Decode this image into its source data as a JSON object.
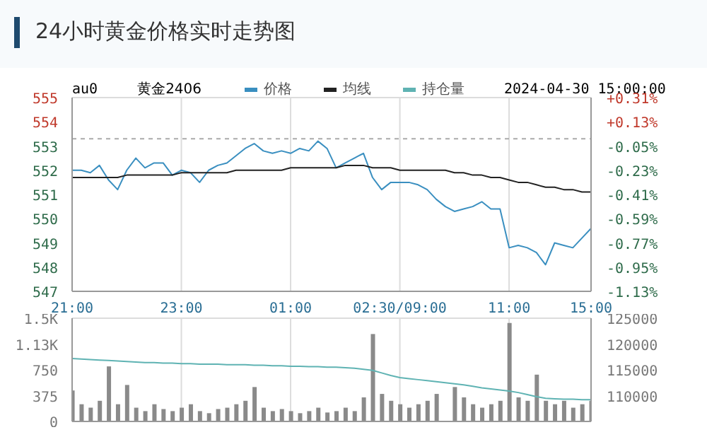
{
  "chart_data": [
    {
      "type": "line",
      "title": "24小时黄金价格实时走势图",
      "annotations": [
        "au0",
        "黄金2406",
        "2024-04-30 15:00:00"
      ],
      "categories": [
        "21:00",
        null,
        null,
        null,
        null,
        null,
        null,
        null,
        null,
        null,
        null,
        null,
        "23:00",
        null,
        null,
        null,
        null,
        null,
        null,
        null,
        null,
        null,
        null,
        null,
        "01:00",
        null,
        null,
        null,
        null,
        null,
        null,
        null,
        null,
        null,
        null,
        null,
        "02:30/09:00",
        null,
        null,
        null,
        null,
        null,
        null,
        null,
        null,
        null,
        null,
        null,
        "11:00",
        null,
        null,
        null,
        null,
        null,
        null,
        null,
        null,
        "15:00"
      ],
      "series": [
        {
          "name": "价格",
          "color": "#3a8fc0",
          "values": [
            552.0,
            552.0,
            551.9,
            552.2,
            551.6,
            551.2,
            552.0,
            552.5,
            552.1,
            552.3,
            552.3,
            551.8,
            552.0,
            551.9,
            551.5,
            552.0,
            552.2,
            552.3,
            552.6,
            552.9,
            553.1,
            552.8,
            552.7,
            552.8,
            552.7,
            552.9,
            552.8,
            553.2,
            552.9,
            552.1,
            552.3,
            552.5,
            552.7,
            551.7,
            551.2,
            551.5,
            551.5,
            551.5,
            551.4,
            551.2,
            550.8,
            550.5,
            550.3,
            550.4,
            550.5,
            550.7,
            550.4,
            550.4,
            548.8,
            548.9,
            548.8,
            548.6,
            548.1,
            549.0,
            548.9,
            548.8,
            549.2,
            549.6
          ]
        },
        {
          "name": "均线",
          "color": "#222222",
          "values": [
            551.7,
            551.7,
            551.7,
            551.7,
            551.7,
            551.7,
            551.8,
            551.8,
            551.8,
            551.8,
            551.8,
            551.8,
            551.9,
            551.9,
            551.9,
            551.9,
            551.9,
            551.9,
            552.0,
            552.0,
            552.0,
            552.0,
            552.0,
            552.0,
            552.1,
            552.1,
            552.1,
            552.1,
            552.1,
            552.1,
            552.2,
            552.2,
            552.2,
            552.1,
            552.1,
            552.1,
            552.0,
            552.0,
            552.0,
            552.0,
            552.0,
            552.0,
            551.9,
            551.9,
            551.8,
            551.8,
            551.7,
            551.7,
            551.6,
            551.5,
            551.5,
            551.4,
            551.3,
            551.3,
            551.2,
            551.2,
            551.1,
            551.1
          ]
        }
      ],
      "ylim": [
        547,
        555
      ],
      "yticks": [
        547,
        548,
        549,
        550,
        551,
        552,
        553,
        554,
        555
      ],
      "y2lim": [
        -1.13,
        0.31
      ],
      "y2ticks": [
        {
          "value": -1.13,
          "label": "-1.13%"
        },
        {
          "value": -0.95,
          "label": "-0.95%"
        },
        {
          "value": -0.77,
          "label": "-0.77%"
        },
        {
          "value": -0.59,
          "label": "-0.59%"
        },
        {
          "value": -0.41,
          "label": "-0.41%"
        },
        {
          "value": -0.23,
          "label": "-0.23%"
        },
        {
          "value": -0.05,
          "label": "-0.05%"
        },
        {
          "value": 0.13,
          "label": "+0.13%"
        },
        {
          "value": 0.31,
          "label": "+0.31%"
        }
      ],
      "ref_lines": [
        {
          "axis": "y",
          "value": 553.3,
          "color": "#aaaaaa",
          "line_style": "dashed"
        }
      ],
      "grid": true,
      "legend": "top"
    },
    {
      "type": "bar",
      "categories": [
        null,
        null,
        null,
        null,
        null,
        null,
        null,
        null,
        null,
        null,
        null,
        null,
        null,
        null,
        null,
        null,
        null,
        null,
        null,
        null,
        null,
        null,
        null,
        null,
        null,
        null,
        null,
        null,
        null,
        null,
        null,
        null,
        null,
        null,
        null,
        null,
        null,
        null,
        null,
        null,
        null,
        null,
        null,
        null,
        null,
        null,
        null,
        null,
        null,
        null,
        null,
        null,
        null,
        null,
        null,
        null,
        null,
        null
      ],
      "series": [
        {
          "color": "#8a8a8a",
          "values": [
            450,
            250,
            200,
            300,
            800,
            250,
            530,
            200,
            150,
            250,
            180,
            150,
            200,
            250,
            150,
            120,
            180,
            200,
            250,
            300,
            500,
            200,
            150,
            180,
            150,
            120,
            150,
            200,
            130,
            150,
            200,
            150,
            350,
            1270,
            400,
            300,
            250,
            200,
            250,
            300,
            400,
            null,
            500,
            350,
            250,
            200,
            250,
            300,
            1430,
            350,
            300,
            680,
            300,
            250,
            300,
            200,
            250,
            300
          ]
        },
        {
          "type": "line",
          "name": "持仓量",
          "axis": "y2",
          "color": "#5fb3b3",
          "values": [
            117200,
            117100,
            117000,
            116900,
            116800,
            116700,
            116600,
            116500,
            116400,
            116400,
            116300,
            116300,
            116200,
            116200,
            116100,
            116100,
            116100,
            116000,
            116000,
            116000,
            115900,
            115900,
            115800,
            115800,
            115700,
            115700,
            115600,
            115600,
            115500,
            115500,
            115400,
            115300,
            115100,
            114900,
            114400,
            113900,
            113500,
            113300,
            113100,
            112900,
            112700,
            112500,
            112300,
            112100,
            111800,
            111500,
            111300,
            111100,
            110900,
            110600,
            110200,
            109800,
            109500,
            109400,
            109300,
            109300,
            109200,
            109200
          ]
        }
      ],
      "ylim": [
        0,
        1500
      ],
      "yticks": [
        0,
        375,
        750,
        {
          "value": 1125,
          "label": "1.13K"
        },
        {
          "value": 1500,
          "label": "1.5K"
        }
      ],
      "y2lim": [
        105000,
        125000
      ],
      "y2ticks": [
        110000,
        115000,
        120000,
        125000
      ],
      "grid": true,
      "legend": "top"
    }
  ]
}
